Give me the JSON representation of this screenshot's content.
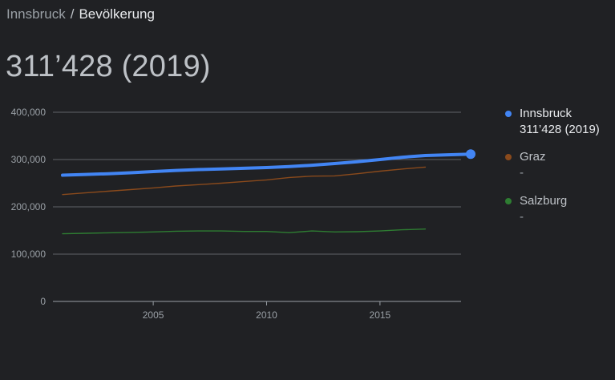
{
  "breadcrumb": {
    "parent": "Innsbruck",
    "separator": "/",
    "current": "Bevölkerung"
  },
  "headline": "311’428 (2019)",
  "legend": [
    {
      "name": "Innsbruck",
      "value": "311’428 (2019)",
      "color": "#4285f4"
    },
    {
      "name": "Graz",
      "value": "-",
      "color": "#8a4a1c"
    },
    {
      "name": "Salzburg",
      "value": "-",
      "color": "#2e7d32"
    }
  ],
  "chart_data": {
    "type": "line",
    "xlim": [
      2001,
      2019
    ],
    "ylim": [
      0,
      400000
    ],
    "x_ticks": [
      "2005",
      "2010",
      "2015"
    ],
    "y_ticks": [
      "0",
      "100,000",
      "200,000",
      "300,000",
      "400,000"
    ],
    "grid": true,
    "legend_position": "right",
    "series": [
      {
        "name": "Innsbruck",
        "color": "#4285f4",
        "x": [
          2001,
          2002,
          2003,
          2004,
          2005,
          2006,
          2007,
          2008,
          2009,
          2010,
          2011,
          2012,
          2013,
          2014,
          2015,
          2016,
          2017,
          2018,
          2019
        ],
        "y": [
          267000,
          268500,
          270000,
          272000,
          274500,
          277000,
          278800,
          280000,
          281500,
          283000,
          285000,
          288000,
          291500,
          295500,
          300000,
          305000,
          308500,
          310000,
          311428
        ],
        "end_marker": true
      },
      {
        "name": "Graz",
        "color": "#8a4a1c",
        "x": [
          2001,
          2002,
          2003,
          2004,
          2005,
          2006,
          2007,
          2008,
          2009,
          2010,
          2011,
          2012,
          2013,
          2014,
          2015,
          2016,
          2017
        ],
        "y": [
          226000,
          229500,
          233000,
          236500,
          240000,
          244000,
          247000,
          250000,
          253500,
          257000,
          262000,
          265000,
          265500,
          270000,
          275500,
          280000,
          284000
        ]
      },
      {
        "name": "Salzburg",
        "color": "#2e7d32",
        "x": [
          2001,
          2002,
          2003,
          2004,
          2005,
          2006,
          2007,
          2008,
          2009,
          2010,
          2011,
          2012,
          2013,
          2014,
          2015,
          2016,
          2017
        ],
        "y": [
          143000,
          144000,
          145000,
          146000,
          147000,
          148500,
          149000,
          149000,
          148000,
          148000,
          145500,
          149000,
          147000,
          147500,
          149000,
          151500,
          153000
        ]
      }
    ]
  }
}
